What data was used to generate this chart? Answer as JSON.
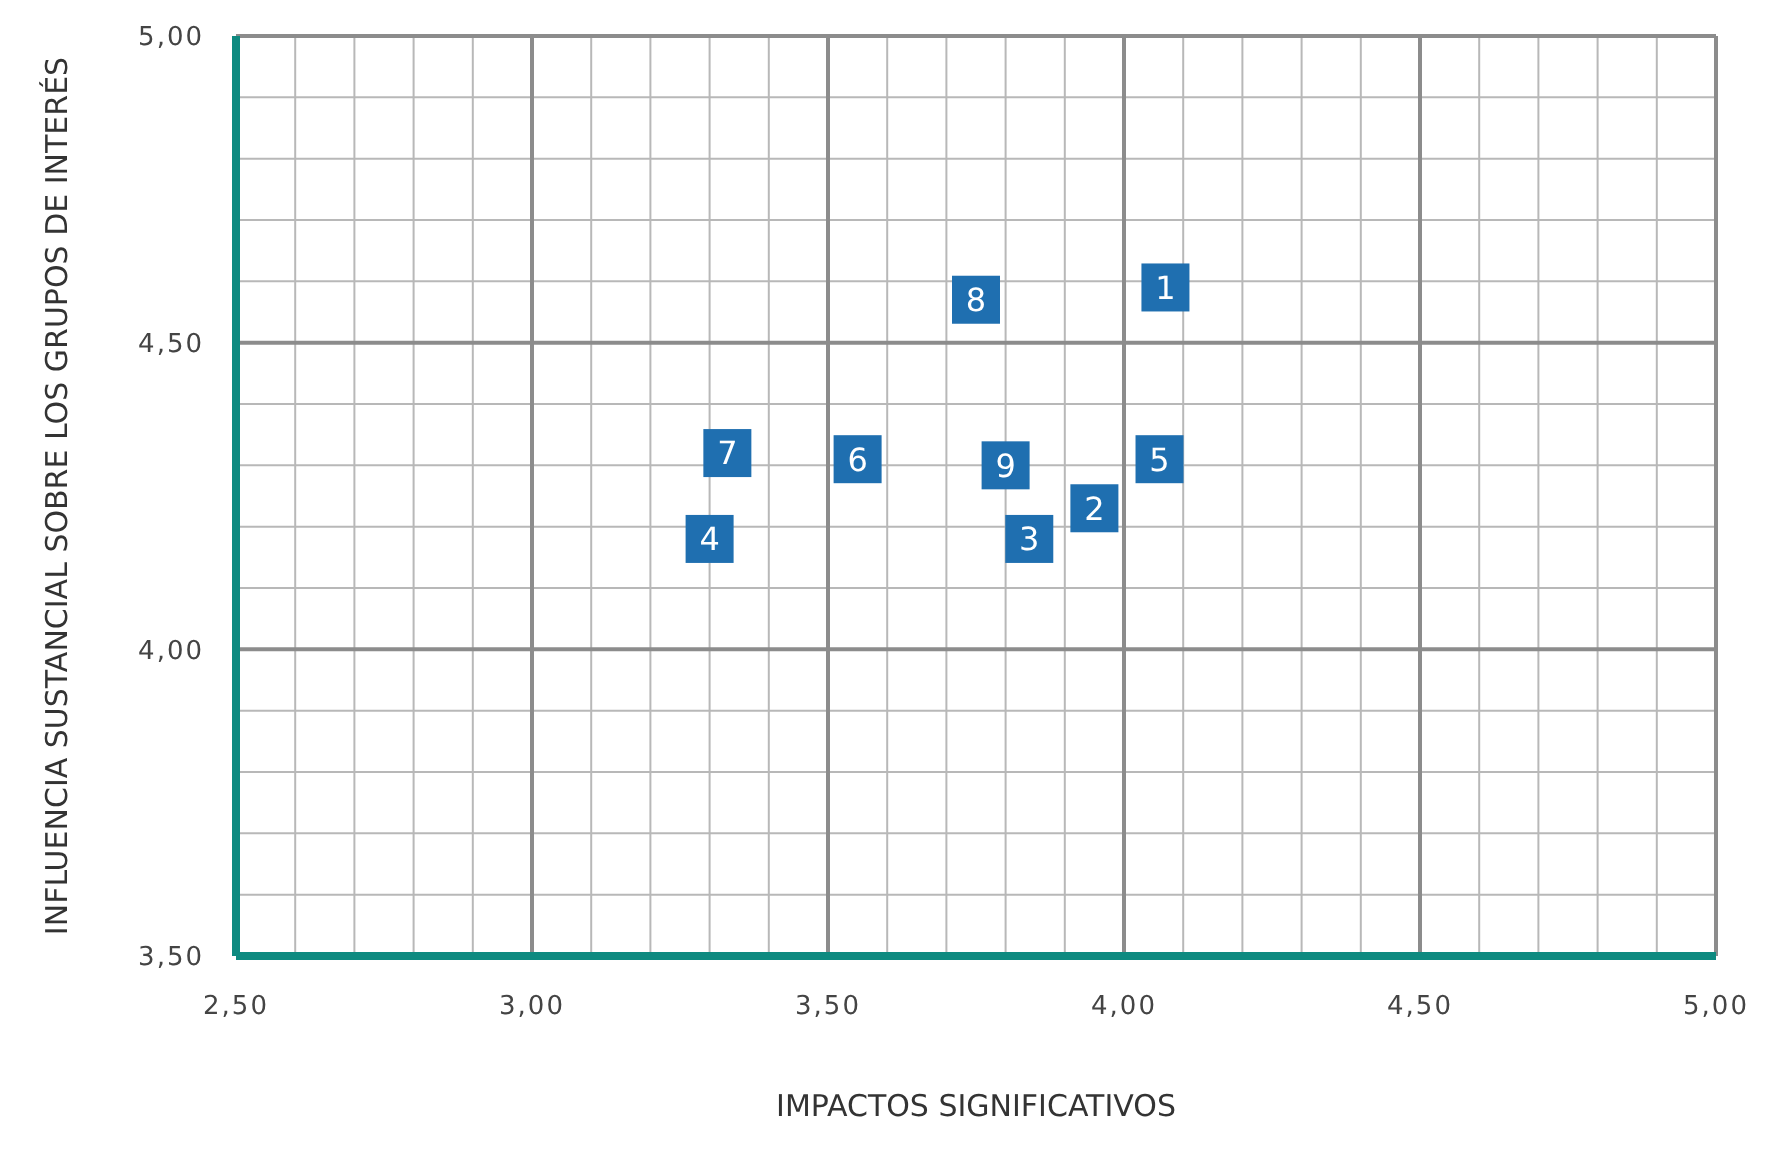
{
  "chart_data": {
    "type": "scatter",
    "xlabel": "IMPACTOS SIGNIFICATIVOS",
    "ylabel": "INFLUENCIA SUSTANCIAL SOBRE LOS GRUPOS DE INTERÉS",
    "x": [
      4.07,
      3.95,
      3.84,
      3.3,
      4.06,
      3.55,
      3.33,
      3.75,
      3.8
    ],
    "series": [
      {
        "color": "#1f6fb0",
        "values": [
          4.59,
          4.23,
          4.18,
          4.18,
          4.31,
          4.31,
          4.32,
          4.57,
          4.3
        ]
      }
    ],
    "annotations": [
      {
        "text": "1",
        "x": 4.07,
        "y": 4.59
      },
      {
        "text": "2",
        "x": 3.95,
        "y": 4.23
      },
      {
        "text": "3",
        "x": 3.84,
        "y": 4.18
      },
      {
        "text": "4",
        "x": 3.3,
        "y": 4.18
      },
      {
        "text": "5",
        "x": 4.06,
        "y": 4.31
      },
      {
        "text": "6",
        "x": 3.55,
        "y": 4.31
      },
      {
        "text": "7",
        "x": 3.33,
        "y": 4.32
      },
      {
        "text": "8",
        "x": 3.75,
        "y": 4.57
      },
      {
        "text": "9",
        "x": 3.8,
        "y": 4.3
      }
    ],
    "marker": "square",
    "grid": true,
    "xlim": [
      2.5,
      5.0
    ],
    "ylim": [
      3.5,
      5.0
    ],
    "xticks": [
      {
        "value": 2.5,
        "label": "2,50"
      },
      {
        "value": 2.6,
        "label": null
      },
      {
        "value": 2.7,
        "label": null
      },
      {
        "value": 2.8,
        "label": null
      },
      {
        "value": 2.9,
        "label": null
      },
      {
        "value": 3.0,
        "label": "3,00"
      },
      {
        "value": 3.1,
        "label": null
      },
      {
        "value": 3.2,
        "label": null
      },
      {
        "value": 3.3,
        "label": null
      },
      {
        "value": 3.4,
        "label": null
      },
      {
        "value": 3.5,
        "label": "3,50"
      },
      {
        "value": 3.6,
        "label": null
      },
      {
        "value": 3.7,
        "label": null
      },
      {
        "value": 3.8,
        "label": null
      },
      {
        "value": 3.9,
        "label": null
      },
      {
        "value": 4.0,
        "label": "4,00"
      },
      {
        "value": 4.1,
        "label": null
      },
      {
        "value": 4.2,
        "label": null
      },
      {
        "value": 4.3,
        "label": null
      },
      {
        "value": 4.4,
        "label": null
      },
      {
        "value": 4.5,
        "label": "4,50"
      },
      {
        "value": 4.6,
        "label": null
      },
      {
        "value": 4.7,
        "label": null
      },
      {
        "value": 4.8,
        "label": null
      },
      {
        "value": 4.9,
        "label": null
      },
      {
        "value": 5.0,
        "label": "5,00"
      }
    ],
    "yticks": [
      {
        "value": 3.5,
        "label": "3,50"
      },
      {
        "value": 3.6,
        "label": null
      },
      {
        "value": 3.7,
        "label": null
      },
      {
        "value": 3.8,
        "label": null
      },
      {
        "value": 3.9,
        "label": null
      },
      {
        "value": 4.0,
        "label": "4,00"
      },
      {
        "value": 4.1,
        "label": null
      },
      {
        "value": 4.2,
        "label": null
      },
      {
        "value": 4.3,
        "label": null
      },
      {
        "value": 4.4,
        "label": null
      },
      {
        "value": 4.5,
        "label": "4,50"
      },
      {
        "value": 4.6,
        "label": null
      },
      {
        "value": 4.7,
        "label": null
      },
      {
        "value": 4.8,
        "label": null
      },
      {
        "value": 4.9,
        "label": null
      },
      {
        "value": 5.0,
        "label": "5,00"
      }
    ]
  }
}
